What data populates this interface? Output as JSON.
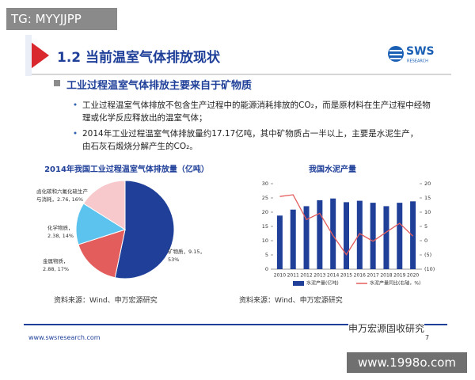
{
  "watermark_top": "TG: MYYJJPP",
  "header": {
    "title": "1.2 当前温室气体排放现状",
    "logo": "SWS",
    "logo_sub": "RESEARCH"
  },
  "heading": "工业过程温室气体排放主要来自于矿物质",
  "bullets": [
    "工业过程温室气体排放不包含生产过程中的能源消耗排放的CO₂，而是原材料在生产过程中经物理或化学反应释放出的温室气体；",
    "2014年工业过程温室气体排放量约17.17亿吨，其中矿物质占一半以上，主要是水泥生产，由石灰石煅烧分解产生的CO₂。"
  ],
  "chart_data": [
    {
      "type": "pie",
      "title": "2014年我国工业过程温室气体排放量（亿吨）",
      "values": [
        9.15,
        2.88,
        2.38,
        2.76
      ],
      "value_labels": [
        [
          "矿物质，9.15，",
          "53%"
        ],
        [
          "金属物质，",
          "2.88, 17%"
        ],
        [
          "化学物质，",
          "2.38, 14%"
        ],
        [
          "卤化碳和六氟化硫生产",
          "与消耗，2.76, 16%"
        ]
      ],
      "colors": [
        "#1f3f99",
        "#e35d5d",
        "#5cc3ee",
        "#f7c9cc"
      ]
    },
    {
      "type": "bar-line",
      "title": "我国水泥产量",
      "categories": [
        "2010",
        "2011",
        "2012",
        "2013",
        "2014",
        "2015",
        "2016",
        "2017",
        "2018",
        "2019",
        "2020"
      ],
      "series": [
        {
          "name": "水泥产量(亿吨)",
          "color": "#1f3f99",
          "type": "bar",
          "values": [
            18.8,
            20.9,
            22.1,
            24.2,
            24.8,
            23.5,
            24.0,
            23.3,
            22.1,
            23.3,
            23.8
          ]
        },
        {
          "name": "水泥产量同比(右轴，%)",
          "color": "#e35d5d",
          "type": "line",
          "axis": "y2",
          "values": [
            15.5,
            16.1,
            7.4,
            9.6,
            1.8,
            -4.9,
            2.5,
            -0.2,
            3.0,
            6.1,
            1.6
          ]
        }
      ],
      "ylim": [
        0,
        30
      ],
      "yticks": [
        0,
        5,
        10,
        15,
        20,
        25,
        30
      ],
      "y2lim": [
        -10,
        20
      ],
      "y2ticks": [
        {
          "value": -10,
          "label": "(10)"
        },
        {
          "value": -5,
          "label": "(5)"
        },
        0,
        5,
        10,
        15,
        20
      ]
    }
  ],
  "sources": [
    "资料来源：Wind、申万宏源研究",
    "资料来源：Wind、申万宏源研究"
  ],
  "footer": {
    "url": "www.swsresearch.com",
    "page": "7",
    "wechat": "申万宏源固收研究"
  },
  "watermark_bottom": "www.1998o.com"
}
